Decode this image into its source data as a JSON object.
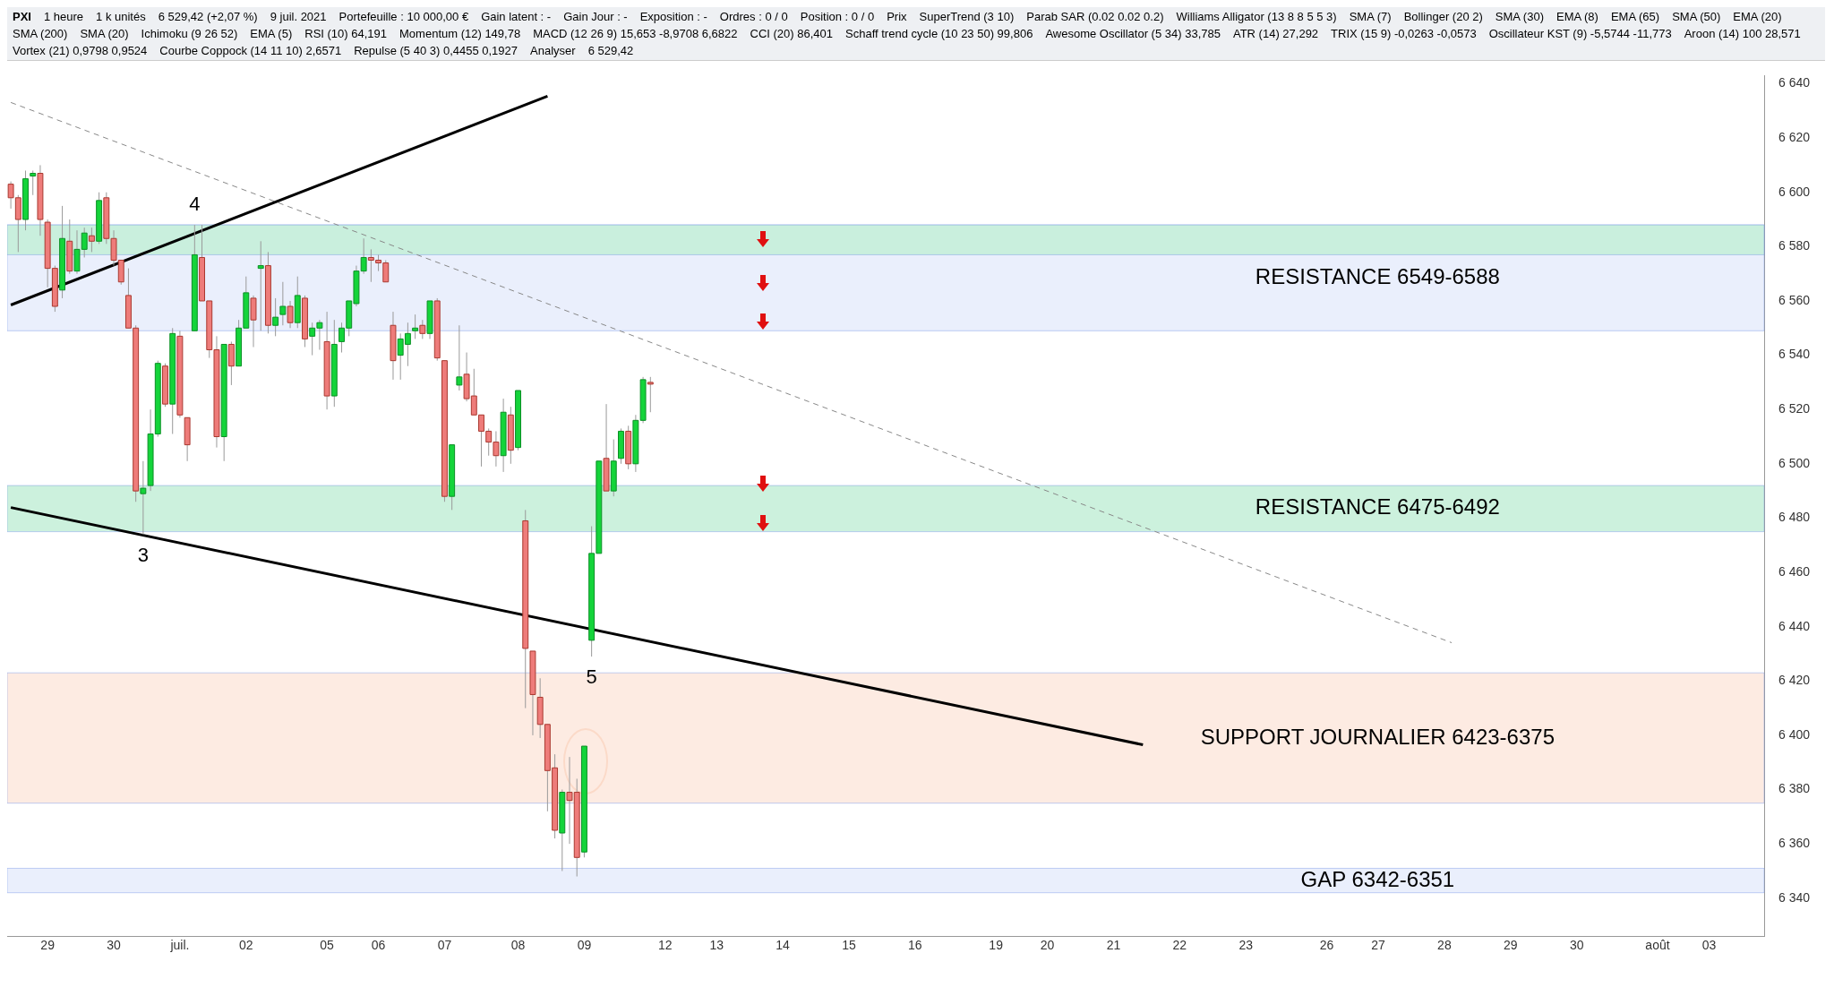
{
  "chart_data": {
    "type": "candlestick",
    "title": "PXI",
    "categories": [
      null,
      null,
      null,
      null,
      null,
      "29",
      null,
      null,
      null,
      null,
      null,
      null,
      null,
      null,
      "30",
      null,
      null,
      null,
      null,
      null,
      null,
      null,
      null,
      "juil.",
      null,
      null,
      null,
      null,
      null,
      null,
      null,
      null,
      "02",
      null,
      null,
      null,
      null,
      null,
      null,
      null,
      null,
      null,
      null,
      "05",
      null,
      null,
      null,
      null,
      null,
      null,
      "06",
      null,
      null,
      null,
      null,
      null,
      null,
      null,
      null,
      "07",
      null,
      null,
      null,
      null,
      null,
      null,
      null,
      null,
      null,
      "08",
      null,
      null,
      null,
      null,
      null,
      null,
      null,
      null,
      "09",
      null,
      null,
      null,
      null,
      null,
      null,
      null,
      null,
      null,
      null,
      "12",
      null,
      null,
      null,
      null,
      null,
      null,
      "13",
      null,
      null,
      null,
      null,
      null,
      null,
      null,
      null,
      "14",
      null,
      null,
      null,
      null,
      null,
      null,
      null,
      null,
      "15",
      null,
      null,
      null,
      null,
      null,
      null,
      null,
      null,
      "16",
      null,
      null,
      null,
      null,
      null,
      null,
      null,
      null,
      null,
      null,
      "19",
      null,
      null,
      null,
      null,
      null,
      null,
      "20",
      null,
      null,
      null,
      null,
      null,
      null,
      null,
      null,
      "21",
      null,
      null,
      null,
      null,
      null,
      null,
      null,
      null,
      "22",
      null,
      null,
      null,
      null,
      null,
      null,
      null,
      null,
      "23",
      null,
      null,
      null,
      null,
      null,
      null,
      null,
      null,
      null,
      null,
      "26",
      null,
      null,
      null,
      null,
      null,
      null,
      "27",
      null,
      null,
      null,
      null,
      null,
      null,
      null,
      null,
      "28",
      null,
      null,
      null,
      null,
      null,
      null,
      null,
      null,
      "29",
      null,
      null,
      null,
      null,
      null,
      null,
      null,
      null,
      "30",
      null,
      null,
      null,
      null,
      null,
      null,
      null,
      null,
      null,
      null,
      "août",
      null,
      null,
      null,
      null,
      null,
      null,
      "03",
      null,
      null,
      null,
      null,
      null,
      null,
      null
    ],
    "ohlc": [
      [
        6603,
        6604,
        6594,
        6598
      ],
      [
        6598,
        6599,
        6578,
        6590
      ],
      [
        6590,
        6608,
        6586,
        6605
      ],
      [
        6606,
        6608,
        6599,
        6607
      ],
      [
        6607,
        6610,
        6584,
        6590
      ],
      [
        6589,
        6590,
        6565,
        6572
      ],
      [
        6572,
        6573,
        6556,
        6558
      ],
      [
        6564,
        6595,
        6561,
        6583
      ],
      [
        6582,
        6590,
        6570,
        6571
      ],
      [
        6571,
        6586,
        6570,
        6579
      ],
      [
        6579,
        6587,
        6576,
        6585
      ],
      [
        6584,
        6587,
        6578,
        6582
      ],
      [
        6582,
        6600,
        6581,
        6597
      ],
      [
        6598,
        6600,
        6581,
        6583
      ],
      [
        6583,
        6586,
        6573,
        6575
      ],
      [
        6575,
        6575,
        6566,
        6567
      ],
      [
        6562,
        6572,
        6550,
        6550
      ],
      [
        6550,
        6551,
        6486,
        6490
      ],
      [
        6489,
        6501,
        6474,
        6491
      ],
      [
        6492,
        6520,
        6490,
        6511
      ],
      [
        6511,
        6538,
        6510,
        6537
      ],
      [
        6536,
        6537,
        6521,
        6522
      ],
      [
        6522,
        6550,
        6511,
        6548
      ],
      [
        6547,
        6549,
        6517,
        6518
      ],
      [
        6517,
        6517,
        6501,
        6507
      ],
      [
        6549,
        6588,
        6549,
        6577
      ],
      [
        6576,
        6588,
        6560,
        6560
      ],
      [
        6560,
        6560,
        6539,
        6542
      ],
      [
        6542,
        6547,
        6506,
        6510
      ],
      [
        6510,
        6544,
        6501,
        6544
      ],
      [
        6544,
        6545,
        6529,
        6536
      ],
      [
        6536,
        6553,
        6536,
        6550
      ],
      [
        6550,
        6569,
        6550,
        6563
      ],
      [
        6561,
        6562,
        6543,
        6553
      ],
      [
        6572,
        6582,
        6549,
        6573
      ],
      [
        6573,
        6578,
        6548,
        6551
      ],
      [
        6551,
        6561,
        6547,
        6554
      ],
      [
        6555,
        6567,
        6551,
        6558
      ],
      [
        6558,
        6560,
        6550,
        6552
      ],
      [
        6552,
        6569,
        6550,
        6562
      ],
      [
        6561,
        6562,
        6543,
        6546
      ],
      [
        6547,
        6552,
        6540,
        6550
      ],
      [
        6550,
        6553,
        6542,
        6552
      ],
      [
        6545,
        6556,
        6520,
        6525
      ],
      [
        6525,
        6553,
        6521,
        6544
      ],
      [
        6545,
        6552,
        6541,
        6550
      ],
      [
        6550,
        6560,
        6547,
        6560
      ],
      [
        6559,
        6573,
        6558,
        6571
      ],
      [
        6571,
        6583,
        6570,
        6576
      ],
      [
        6576,
        6579,
        6567,
        6575
      ],
      [
        6575,
        6577,
        6571,
        6574
      ],
      [
        6574,
        6575,
        6567,
        6567
      ],
      [
        6551,
        6556,
        6531,
        6538
      ],
      [
        6540,
        6548,
        6531,
        6546
      ],
      [
        6544,
        6552,
        6536,
        6548
      ],
      [
        6549,
        6555,
        6546,
        6550
      ],
      [
        6551,
        6553,
        6546,
        6548
      ],
      [
        6548,
        6560,
        6546,
        6560
      ],
      [
        6560,
        6561,
        6538,
        6539
      ],
      [
        6538,
        6538,
        6486,
        6488
      ],
      [
        6488,
        6507,
        6483,
        6507
      ],
      [
        6529,
        6551,
        6527,
        6532
      ],
      [
        6533,
        6541,
        6523,
        6524
      ],
      [
        6525,
        6535,
        6518,
        6518
      ],
      [
        6518,
        6518,
        6499,
        6512
      ],
      [
        6512,
        6513,
        6503,
        6508
      ],
      [
        6508,
        6512,
        6499,
        6503
      ],
      [
        6503,
        6524,
        6497,
        6519
      ],
      [
        6518,
        6521,
        6500,
        6505
      ],
      [
        6506,
        6527,
        6505,
        6527
      ],
      [
        6479,
        6483,
        6410,
        6432
      ],
      [
        6431,
        6431,
        6400,
        6415
      ],
      [
        6414,
        6421,
        6399,
        6404
      ],
      [
        6404,
        6404,
        6372,
        6387
      ],
      [
        6388,
        6393,
        6362,
        6365
      ],
      [
        6364,
        6380,
        6350,
        6379
      ],
      [
        6379,
        6392,
        6360,
        6376
      ],
      [
        6379,
        6384,
        6348,
        6355
      ],
      [
        6357,
        6396,
        6355,
        6396
      ],
      [
        6435,
        6477,
        6429,
        6467
      ],
      [
        6467,
        6501,
        6467,
        6501
      ],
      [
        6502,
        6522,
        6490,
        6490
      ],
      [
        6490,
        6509,
        6488,
        6501
      ],
      [
        6502,
        6513,
        6500,
        6512
      ],
      [
        6512,
        6514,
        6498,
        6500
      ],
      [
        6500,
        6518,
        6497,
        6516
      ],
      [
        6516,
        6532,
        6515,
        6531
      ],
      [
        6530,
        6532,
        6519,
        6529.42
      ],
      null,
      null,
      null,
      null,
      null,
      null,
      null,
      null,
      null,
      null,
      null,
      null,
      null,
      null,
      null,
      null,
      null,
      null,
      null,
      null,
      null,
      null,
      null,
      null,
      null,
      null,
      null,
      null,
      null,
      null,
      null,
      null,
      null,
      null,
      null,
      null,
      null,
      null,
      null,
      null,
      null,
      null,
      null,
      null,
      null,
      null,
      null,
      null,
      null,
      null,
      null,
      null,
      null,
      null,
      null,
      null,
      null,
      null,
      null,
      null,
      null,
      null,
      null,
      null,
      null,
      null,
      null,
      null,
      null,
      null,
      null,
      null,
      null,
      null,
      null,
      null,
      null,
      null,
      null,
      null,
      null,
      null,
      null,
      null,
      null,
      null,
      null,
      null,
      null,
      null,
      null,
      null,
      null,
      null,
      null,
      null,
      null,
      null,
      null,
      null,
      null,
      null,
      null,
      null,
      null,
      null,
      null,
      null,
      null,
      null,
      null,
      null,
      null,
      null,
      null,
      null,
      null,
      null,
      null,
      null,
      null,
      null,
      null,
      null,
      null,
      null,
      null,
      null,
      null,
      null,
      null,
      null,
      null,
      null,
      null,
      null,
      null,
      null,
      null,
      null,
      null,
      null,
      null,
      null,
      null,
      null,
      null,
      null,
      null,
      null,
      null
    ],
    "series": [
      {
        "type": "line",
        "color": "#000000",
        "values": [
          6558.5,
          null,
          null,
          null,
          null,
          null,
          null,
          null,
          null,
          null,
          null,
          null,
          null,
          null,
          null,
          null,
          null,
          null,
          null,
          null,
          null,
          null,
          null,
          null,
          null,
          null,
          null,
          null,
          null,
          null,
          null,
          null,
          null,
          null,
          null,
          null,
          null,
          null,
          null,
          null,
          null,
          null,
          null,
          null,
          null,
          null,
          null,
          null,
          null,
          null,
          null,
          null,
          null,
          null,
          null,
          null,
          null,
          null,
          null,
          null,
          null,
          null,
          null,
          null,
          null,
          null,
          null,
          null,
          null,
          null,
          null,
          null,
          null,
          6635.4,
          null,
          null,
          null,
          null,
          null,
          null,
          null,
          null,
          null,
          null,
          null,
          null,
          null,
          null,
          null,
          null,
          null,
          null,
          null,
          null,
          null,
          null,
          null,
          null,
          null,
          null,
          null,
          null,
          null,
          null,
          null,
          null,
          null,
          null,
          null,
          null,
          null,
          null,
          null,
          null,
          null,
          null,
          null,
          null,
          null,
          null,
          null,
          null,
          null,
          null,
          null,
          null,
          null,
          null,
          null,
          null,
          null,
          null,
          null,
          null,
          null,
          null,
          null,
          null,
          null,
          null,
          null,
          null,
          null,
          null,
          null,
          null,
          null,
          null,
          null,
          null,
          null,
          null,
          null,
          null,
          null,
          null,
          null,
          null,
          null,
          null,
          null,
          null,
          null,
          null,
          null,
          null,
          null,
          null,
          null,
          null,
          null,
          null,
          null,
          null,
          null,
          null,
          null,
          null,
          null,
          null,
          null,
          null,
          null,
          null,
          null,
          null,
          null,
          null,
          null,
          null,
          null,
          null,
          null,
          null,
          null,
          null,
          null,
          null,
          null,
          null,
          null,
          null,
          null,
          null,
          null,
          null,
          null,
          null,
          null,
          null,
          null,
          null,
          null,
          null,
          null,
          null,
          null,
          null,
          null,
          null,
          null,
          null,
          null,
          null,
          null,
          null,
          null,
          null,
          null,
          null,
          null,
          null,
          null,
          null,
          null,
          null,
          null,
          null,
          null
        ]
      },
      {
        "type": "line",
        "color": "#000000",
        "values": [
          6483.9,
          null,
          null,
          null,
          null,
          null,
          null,
          null,
          null,
          null,
          null,
          null,
          null,
          null,
          null,
          null,
          null,
          null,
          null,
          null,
          null,
          null,
          null,
          null,
          null,
          null,
          null,
          null,
          null,
          null,
          null,
          null,
          null,
          null,
          null,
          null,
          null,
          null,
          null,
          null,
          null,
          null,
          null,
          null,
          null,
          null,
          null,
          null,
          null,
          null,
          null,
          null,
          null,
          null,
          null,
          null,
          null,
          null,
          null,
          null,
          null,
          null,
          null,
          null,
          null,
          null,
          null,
          null,
          null,
          null,
          null,
          null,
          null,
          null,
          null,
          null,
          null,
          null,
          null,
          null,
          null,
          null,
          null,
          null,
          null,
          null,
          null,
          null,
          null,
          null,
          null,
          null,
          null,
          null,
          null,
          null,
          null,
          null,
          null,
          null,
          null,
          null,
          null,
          null,
          null,
          null,
          null,
          null,
          null,
          null,
          null,
          null,
          null,
          null,
          null,
          null,
          null,
          null,
          null,
          null,
          null,
          null,
          null,
          null,
          null,
          null,
          null,
          null,
          null,
          null,
          null,
          null,
          null,
          null,
          null,
          null,
          null,
          null,
          null,
          null,
          null,
          null,
          null,
          null,
          null,
          null,
          null,
          null,
          null,
          null,
          null,
          null,
          null,
          null,
          6396.5,
          null,
          null,
          null,
          null,
          null,
          null,
          null,
          null,
          null,
          null,
          null,
          null,
          null,
          null,
          null,
          null,
          null,
          null,
          null,
          null,
          null,
          null,
          null,
          null,
          null,
          null,
          null,
          null,
          null,
          null,
          null,
          null,
          null,
          null,
          null,
          null,
          null,
          null,
          null,
          null,
          null,
          null,
          null,
          null,
          null,
          null,
          null,
          null,
          null,
          null,
          null,
          null,
          null,
          null,
          null,
          null,
          null,
          null,
          null,
          null,
          null,
          null,
          null,
          null,
          null,
          null,
          null,
          null,
          null,
          null,
          null,
          null,
          null,
          null,
          null,
          null,
          null,
          null,
          null,
          null,
          null,
          null,
          null,
          null
        ]
      },
      {
        "type": "line",
        "color": "#888888",
        "line_style": "dashed",
        "values": [
          6633.1,
          null,
          null,
          null,
          null,
          null,
          null,
          null,
          null,
          null,
          null,
          null,
          null,
          null,
          null,
          null,
          null,
          null,
          null,
          null,
          null,
          null,
          null,
          null,
          null,
          null,
          null,
          null,
          null,
          null,
          null,
          null,
          null,
          null,
          null,
          null,
          null,
          null,
          null,
          null,
          null,
          null,
          null,
          null,
          null,
          null,
          null,
          null,
          null,
          null,
          null,
          null,
          null,
          null,
          null,
          null,
          null,
          null,
          null,
          null,
          null,
          null,
          null,
          null,
          null,
          null,
          null,
          null,
          null,
          null,
          null,
          null,
          null,
          null,
          null,
          null,
          null,
          null,
          null,
          null,
          null,
          null,
          null,
          null,
          null,
          null,
          null,
          null,
          null,
          null,
          null,
          null,
          null,
          null,
          null,
          null,
          null,
          null,
          null,
          null,
          null,
          null,
          null,
          null,
          null,
          null,
          null,
          null,
          null,
          null,
          null,
          null,
          null,
          null,
          null,
          null,
          null,
          null,
          null,
          null,
          null,
          null,
          null,
          null,
          null,
          null,
          null,
          null,
          null,
          null,
          null,
          null,
          null,
          null,
          null,
          null,
          null,
          null,
          null,
          null,
          null,
          null,
          null,
          null,
          null,
          null,
          null,
          null,
          null,
          null,
          null,
          null,
          null,
          null,
          null,
          null,
          null,
          null,
          null,
          null,
          null,
          null,
          null,
          null,
          null,
          null,
          null,
          null,
          null,
          null,
          null,
          null,
          null,
          null,
          null,
          null,
          null,
          null,
          null,
          null,
          null,
          null,
          null,
          null,
          null,
          null,
          null,
          null,
          null,
          null,
          null,
          null,
          null,
          null,
          null,
          null,
          6434.1,
          null,
          null,
          null,
          null,
          null,
          null,
          null,
          null,
          null,
          null,
          null,
          null,
          null,
          null,
          null,
          null,
          null,
          null,
          null,
          null,
          null,
          null,
          null,
          null,
          null,
          null,
          null,
          null,
          null,
          null,
          null,
          null,
          null,
          null,
          null,
          null,
          null,
          null,
          null,
          null,
          null,
          null
        ]
      }
    ],
    "bands": [
      {
        "axis": "y",
        "from": 6549,
        "to": 6588,
        "color": "#e6ecfc",
        "label": "RESISTANCE 6549-6588"
      },
      {
        "axis": "y",
        "from": 6577,
        "to": 6588,
        "color": "#c3efd7"
      },
      {
        "axis": "y",
        "from": 6475,
        "to": 6492,
        "color": "#c3efd7",
        "label": "RESISTANCE 6475-6492"
      },
      {
        "axis": "y",
        "from": 6375,
        "to": 6423,
        "color": "#fde8dd",
        "label": "SUPPORT JOURNALIER 6423-6375"
      },
      {
        "axis": "y",
        "from": 6342,
        "to": 6351,
        "color": "#e6ecfc",
        "label": "GAP 6342-6351"
      }
    ],
    "annotations": [
      "1 heure",
      "1 k unités",
      "6 529,42 (+2,07 %)",
      "9 juil. 2021",
      "Portefeuille : 10 000,00 €",
      "Gain latent : -",
      "Gain Jour : -",
      "Exposition : -",
      "Ordres : 0 / 0",
      "Position : 0 / 0",
      "Prix",
      "SuperTrend (3 10)",
      "Parab SAR (0.02 0.02 0.2)",
      "Williams Alligator (13 8 8 5 5 3)",
      "SMA (7)",
      "Bollinger (20 2)",
      "SMA (30)",
      "EMA (8)",
      "EMA (65)",
      "SMA (50)",
      "EMA (20)",
      "SMA (200)",
      "SMA (20)",
      "Ichimoku (9 26 52)",
      "EMA (5)",
      "RSI (10) 64,191",
      "Momentum (12) 149,78",
      "MACD (12 26 9) 15,653 -8,9708 6,6822",
      "CCI (20) 86,401",
      "Schaff trend cycle (10 23 50) 99,806",
      "Awesome Oscillator (5 34) 33,785",
      "ATR (14) 27,292",
      "TRIX (15 9) -0,0263 -0,0573",
      "Oscillateur KST (9) -5,5744 -11,773",
      "Aroon (14) 100 28,571",
      "Vortex (21) 0,9798 0,9524",
      "Courbe Coppock (14 11 10) 2,6571",
      "Repulse (5 40 3) 0,4455 0,1927",
      "Analyser",
      {
        "text": "4",
        "y": 6588
      },
      {
        "text": "3",
        "y": 6474
      },
      {
        "text": "5",
        "y": 6429
      },
      "6 529,42"
    ],
    "ylim": [
      6326,
      6643
    ],
    "yticks": [
      {
        "value": 6340,
        "label": "6 340"
      },
      {
        "value": 6360,
        "label": "6 360"
      },
      {
        "value": 6380,
        "label": "6 380"
      },
      {
        "value": 6400,
        "label": "6 400"
      },
      {
        "value": 6420,
        "label": "6 420"
      },
      {
        "value": 6440,
        "label": "6 440"
      },
      {
        "value": 6460,
        "label": "6 460"
      },
      {
        "value": 6480,
        "label": "6 480"
      },
      {
        "value": 6500,
        "label": "6 500"
      },
      {
        "value": 6520,
        "label": "6 520"
      },
      {
        "value": 6540,
        "label": "6 540"
      },
      {
        "value": 6560,
        "label": "6 560"
      },
      {
        "value": 6580,
        "label": "6 580"
      },
      {
        "value": 6600,
        "label": "6 600"
      },
      {
        "value": 6620,
        "label": "6 620"
      },
      {
        "value": 6640,
        "label": "6 640"
      }
    ]
  }
}
